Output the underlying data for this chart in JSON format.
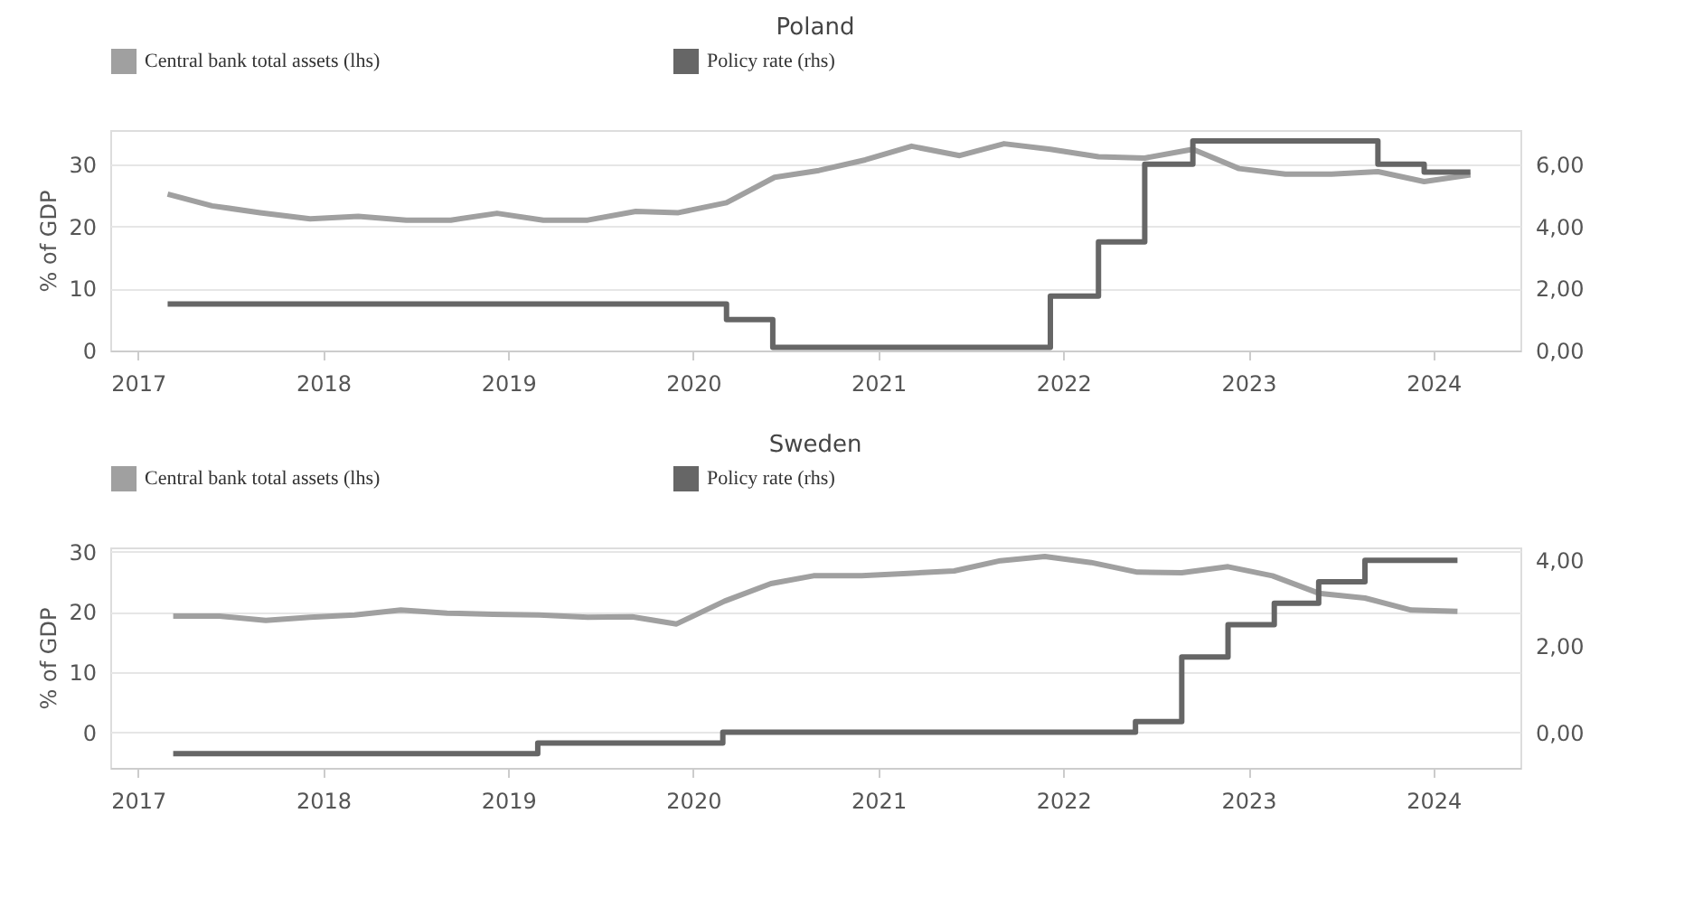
{
  "chart_data": [
    {
      "type": "line",
      "title": "Poland",
      "ylabel": "% of GDP",
      "legend": "top left",
      "grid": "y",
      "xlim": [
        2016.85,
        2024.47
      ],
      "xticks": [
        2017,
        2018,
        2019,
        2020,
        2021,
        2022,
        2023,
        2024
      ],
      "ylim": [
        0,
        35.5
      ],
      "yticks": [
        0,
        10,
        20,
        30
      ],
      "y2lim": [
        0,
        7.1
      ],
      "y2ticks": [
        {
          "value": 0,
          "label": "0,00"
        },
        {
          "value": 2,
          "label": "2,00"
        },
        {
          "value": 4,
          "label": "4,00"
        },
        {
          "value": 6,
          "label": "6,00"
        }
      ],
      "series": [
        {
          "name": "Central bank total assets (lhs)",
          "color": "#a0a0a0",
          "x": [
            2017.16,
            2017.4,
            2017.66,
            2017.93,
            2018.19,
            2018.45,
            2018.69,
            2018.94,
            2019.19,
            2019.43,
            2019.69,
            2019.92,
            2020.18,
            2020.44,
            2020.68,
            2020.93,
            2021.18,
            2021.44,
            2021.68,
            2021.93,
            2022.19,
            2022.44,
            2022.7,
            2022.95,
            2023.2,
            2023.45,
            2023.7,
            2023.95,
            2024.2
          ],
          "values": [
            25.2,
            23.3,
            22.2,
            21.2,
            21.6,
            21.0,
            21.0,
            22.1,
            21.0,
            21.0,
            22.4,
            22.2,
            23.8,
            27.9,
            29.0,
            30.7,
            32.9,
            31.4,
            33.3,
            32.4,
            31.2,
            31.0,
            32.4,
            29.3,
            28.4,
            28.4,
            28.8,
            27.2,
            28.3
          ]
        },
        {
          "name": "Policy rate (rhs)",
          "color": "#666666",
          "type": "step",
          "axis": "y2",
          "x": [
            2017.16,
            2020.18,
            2020.43,
            2021.93,
            2022.19,
            2022.44,
            2022.7,
            2023.7,
            2023.95,
            2024.2
          ],
          "values": [
            1.5,
            1.0,
            0.1,
            1.75,
            3.5,
            6.0,
            6.75,
            6.0,
            5.75,
            5.75
          ]
        }
      ]
    },
    {
      "type": "line",
      "title": "Sweden",
      "ylabel": "% of GDP",
      "legend": "top left",
      "grid": "y",
      "xlim": [
        2016.85,
        2024.47
      ],
      "xticks": [
        2017,
        2018,
        2019,
        2020,
        2021,
        2022,
        2023,
        2024
      ],
      "ylim": [
        -5.9,
        30.7
      ],
      "yticks": [
        0,
        10,
        20,
        30
      ],
      "y2lim": [
        -0.83,
        4.3
      ],
      "y2ticks": [
        {
          "value": 0,
          "label": "0,00"
        },
        {
          "value": 2,
          "label": "2,00"
        },
        {
          "value": 4,
          "label": "4,00"
        }
      ],
      "series": [
        {
          "name": "Central bank total assets (lhs)",
          "color": "#a0a0a0",
          "x": [
            2017.19,
            2017.44,
            2017.69,
            2017.93,
            2018.17,
            2018.42,
            2018.67,
            2018.92,
            2019.17,
            2019.43,
            2019.67,
            2019.91,
            2020.17,
            2020.42,
            2020.65,
            2020.91,
            2021.16,
            2021.41,
            2021.66,
            2021.9,
            2022.15,
            2022.4,
            2022.64,
            2022.89,
            2023.13,
            2023.38,
            2023.63,
            2023.88,
            2024.13
          ],
          "values": [
            19.3,
            19.3,
            18.6,
            19.1,
            19.5,
            20.3,
            19.8,
            19.6,
            19.5,
            19.1,
            19.2,
            18.0,
            21.8,
            24.7,
            26.0,
            26.0,
            26.4,
            26.8,
            28.5,
            29.2,
            28.2,
            26.6,
            26.5,
            27.5,
            26.0,
            23.1,
            22.3,
            20.3,
            20.1
          ]
        },
        {
          "name": "Policy rate (rhs)",
          "color": "#666666",
          "type": "step",
          "axis": "y2",
          "x": [
            2017.19,
            2019.16,
            2020.16,
            2022.39,
            2022.64,
            2022.89,
            2023.14,
            2023.38,
            2023.63,
            2024.13
          ],
          "values": [
            -0.5,
            -0.25,
            0,
            0.25,
            1.75,
            2.5,
            3.0,
            3.5,
            4.0,
            4.0
          ]
        }
      ]
    }
  ]
}
